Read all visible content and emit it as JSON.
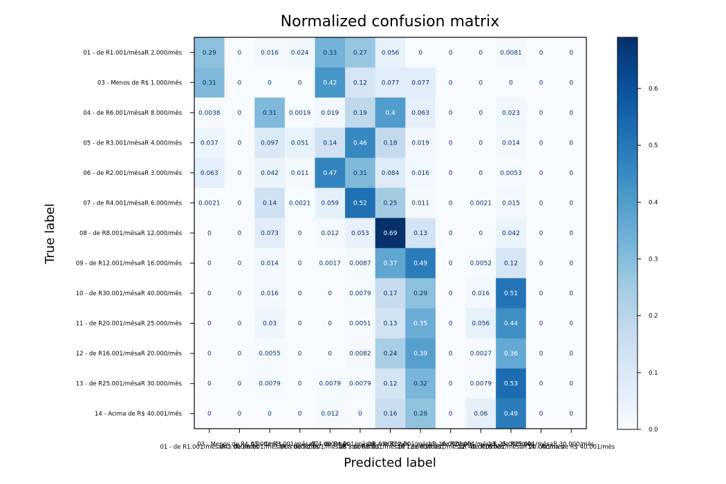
{
  "chart_data": {
    "type": "heatmap",
    "title": "Normalized confusion matrix",
    "xlabel": "Predicted label",
    "ylabel": "True label",
    "row_labels": [
      "01 - de R1.001/mêsaR 2.000/mês",
      "03 - Menos de R$ 1.000/mês",
      "04 - de R6.001/mêsaR 8.000/mês",
      "05 - de R3.001/mêsaR 4.000/mês",
      "06 - de R2.001/mêsaR 3.000/mês",
      "07 - de R4.001/mêsaR 6.000/mês",
      "08 - de R8.001/mêsaR 12.000/mês",
      "09 - de R12.001/mêsaR 16.000/mês",
      "10 - de R30.001/mêsaR 40.000/mês",
      "11 - de R20.001/mêsaR 25.000/mês",
      "12 - de R16.001/mêsaR 20.000/mês",
      "13 - de R25.001/mêsaR 30.000/mês",
      "14 - Acima de R$ 40.001/mês"
    ],
    "col_labels": [
      "01 - de R1.001/mêsaR 2.000/mês",
      "03 - Menos de R$ 1.000/mês",
      "04 - de R6.001/mêsaR 8.000/mês",
      "05 - de R3.001/mêsaR 4.000/mês",
      "06 - de R2.001/mêsaR 3.000/mês",
      "07 - de R4.001/mêsaR 6.000/mês",
      "08 - de R8.001/mêsaR 12.000/mês",
      "09 - de R12.001/mêsaR 16.000/mês",
      "10 - de R30.001/mêsaR 40.000/mês",
      "11 - de R20.001/mêsaR 25.000/mês",
      "12 - de R16.001/mêsaR 20.000/mês",
      "13 - de R25.001/mêsaR 30.000/mês",
      "14 - Acima de R$ 40.001/mês"
    ],
    "values": [
      [
        0.29,
        0,
        0.016,
        0.024,
        0.33,
        0.27,
        0.056,
        0,
        0,
        0,
        0.0081,
        0,
        0
      ],
      [
        0.31,
        0,
        0,
        0,
        0.42,
        0.12,
        0.077,
        0.077,
        0,
        0,
        0,
        0,
        0
      ],
      [
        0.0038,
        0,
        0.31,
        0.0019,
        0.019,
        0.19,
        0.4,
        0.063,
        0,
        0,
        0.023,
        0,
        0
      ],
      [
        0.037,
        0,
        0.097,
        0.051,
        0.14,
        0.46,
        0.18,
        0.019,
        0,
        0,
        0.014,
        0,
        0
      ],
      [
        0.063,
        0,
        0.042,
        0.011,
        0.47,
        0.31,
        0.084,
        0.016,
        0,
        0,
        0.0053,
        0,
        0
      ],
      [
        0.0021,
        0,
        0.14,
        0.0021,
        0.059,
        0.52,
        0.25,
        0.011,
        0,
        0.0021,
        0.015,
        0,
        0
      ],
      [
        0,
        0,
        0.073,
        0,
        0.012,
        0.053,
        0.69,
        0.13,
        0,
        0,
        0.042,
        0,
        0
      ],
      [
        0,
        0,
        0.014,
        0,
        0.0017,
        0.0087,
        0.37,
        0.49,
        0,
        0.0052,
        0.12,
        0,
        0
      ],
      [
        0,
        0,
        0.016,
        0,
        0,
        0.0079,
        0.17,
        0.29,
        0,
        0.016,
        0.51,
        0,
        0
      ],
      [
        0,
        0,
        0.03,
        0,
        0,
        0.0051,
        0.13,
        0.35,
        0,
        0.056,
        0.44,
        0,
        0
      ],
      [
        0,
        0,
        0.0055,
        0,
        0,
        0.0082,
        0.24,
        0.39,
        0,
        0.0027,
        0.36,
        0,
        0
      ],
      [
        0,
        0,
        0.0079,
        0,
        0.0079,
        0.0079,
        0.12,
        0.32,
        0,
        0.0079,
        0.53,
        0,
        0
      ],
      [
        0,
        0,
        0,
        0,
        0.012,
        0,
        0.16,
        0.28,
        0,
        0.06,
        0.49,
        0,
        0
      ]
    ],
    "colormap": "Blues",
    "vmin": 0,
    "vmax": 0.69,
    "colorbar_ticks": [
      "0.0",
      "0.1",
      "0.2",
      "0.3",
      "0.4",
      "0.5",
      "0.6"
    ],
    "colors": {
      "text_dark": "#08306b",
      "text_light": "#ffffff",
      "axes": "#000000"
    },
    "grid": false
  }
}
